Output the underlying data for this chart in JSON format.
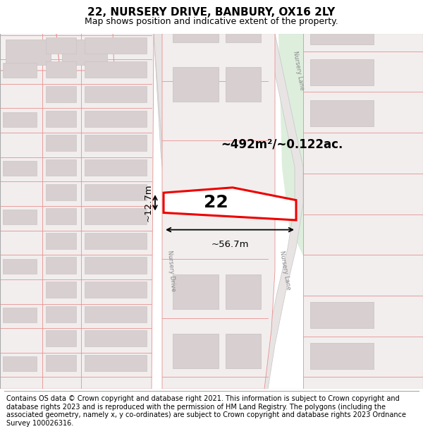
{
  "title": "22, NURSERY DRIVE, BANBURY, OX16 2LY",
  "subtitle": "Map shows position and indicative extent of the property.",
  "footer": "Contains OS data © Crown copyright and database right 2021. This information is subject to Crown copyright and database rights 2023 and is reproduced with the permission of HM Land Registry. The polygons (including the associated geometry, namely x, y co-ordinates) are subject to Crown copyright and database rights 2023 Ordnance Survey 100026316.",
  "area_label": "~492m²/~0.122ac.",
  "number_label": "22",
  "dim_width": "~56.7m",
  "dim_height": "~12.7m",
  "map_bg": "#f0eeee",
  "plot_fill": "#f5f0f0",
  "plot_stroke": "#e89090",
  "building_fill": "#d8d0d0",
  "building_stroke": "#c8c0c0",
  "highlight_stroke": "#ee0000",
  "highlight_fill": "#ffffff",
  "green_fill": "#ddeedd",
  "road_fill": "#e8e4e4",
  "road_edge": "#c8c4c4",
  "title_fontsize": 11,
  "subtitle_fontsize": 9,
  "footer_fontsize": 7.0
}
